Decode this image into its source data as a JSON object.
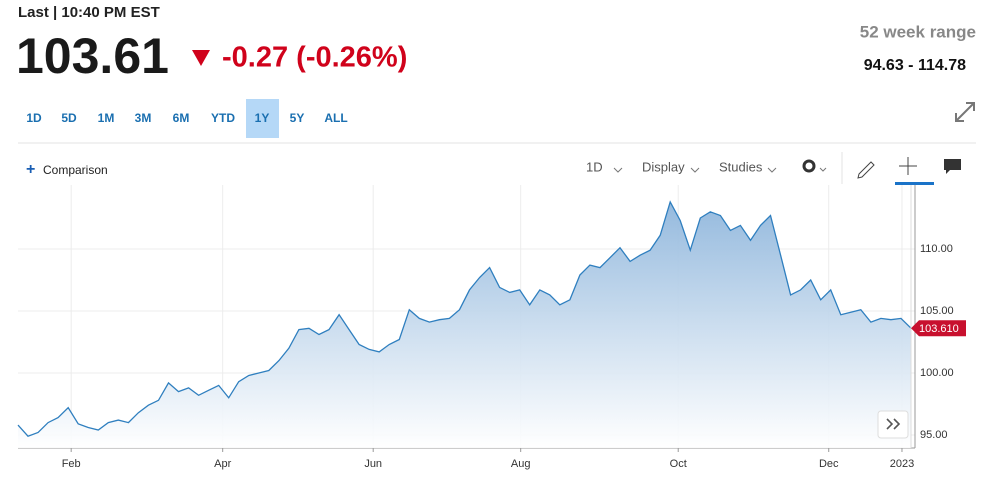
{
  "header": {
    "last_time": "Last | 10:40 PM EST",
    "price": "103.61",
    "change": "-0.27 (-0.26%)",
    "range_title": "52 week range",
    "range_value": "94.63 - 114.78"
  },
  "range_buttons": [
    "1D",
    "5D",
    "1M",
    "3M",
    "6M",
    "YTD",
    "1Y",
    "5Y",
    "ALL"
  ],
  "active_range": "1Y",
  "toolbar": {
    "comparison": "Comparison",
    "interval": "1D",
    "display": "Display",
    "studies": "Studies"
  },
  "chart_data": {
    "type": "area",
    "series": [
      {
        "color": "#2f7fbf",
        "values": [
          95.8,
          94.9,
          95.2,
          96.0,
          96.4,
          97.2,
          95.9,
          95.6,
          95.4,
          96.0,
          96.2,
          96.0,
          96.8,
          97.4,
          97.8,
          99.2,
          98.5,
          98.8,
          98.2,
          98.6,
          99.0,
          98.0,
          99.3,
          99.8,
          100.0,
          100.2,
          101.0,
          102.0,
          103.5,
          103.6,
          103.1,
          103.5,
          104.7,
          103.5,
          102.3,
          101.9,
          101.7,
          102.3,
          102.7,
          105.1,
          104.4,
          104.1,
          104.3,
          104.4,
          105.1,
          106.7,
          107.7,
          108.5,
          106.9,
          106.5,
          106.7,
          105.5,
          106.7,
          106.3,
          105.5,
          105.9,
          107.9,
          108.7,
          108.5,
          109.3,
          110.1,
          109.0,
          109.5,
          109.9,
          111.1,
          113.8,
          112.3,
          109.9,
          112.5,
          113.0,
          112.7,
          111.5,
          111.9,
          110.7,
          111.9,
          112.7,
          109.5,
          106.3,
          106.7,
          107.5,
          105.9,
          106.7,
          104.7,
          104.9,
          105.1,
          104.1,
          104.4,
          104.3,
          104.4,
          103.61
        ]
      }
    ],
    "last_value_label": "103.610",
    "tag_color": "#c8102e",
    "xlim": [
      0,
      89
    ],
    "xticks": [
      {
        "value": 5.3,
        "label": "Feb"
      },
      {
        "value": 20.4,
        "label": "Apr"
      },
      {
        "value": 35.4,
        "label": "Jun"
      },
      {
        "value": 50.1,
        "label": "Aug"
      },
      {
        "value": 65.8,
        "label": "Oct"
      },
      {
        "value": 80.8,
        "label": "Dec"
      },
      {
        "value": 88.1,
        "label": "2023"
      }
    ],
    "ylim": [
      93.95,
      115.16
    ],
    "yticks": [
      {
        "value": 95,
        "label": "95.00"
      },
      {
        "value": 100,
        "label": "100.00"
      },
      {
        "value": 105,
        "label": "105.00"
      },
      {
        "value": 110,
        "label": "110.00"
      }
    ],
    "grid": true
  }
}
